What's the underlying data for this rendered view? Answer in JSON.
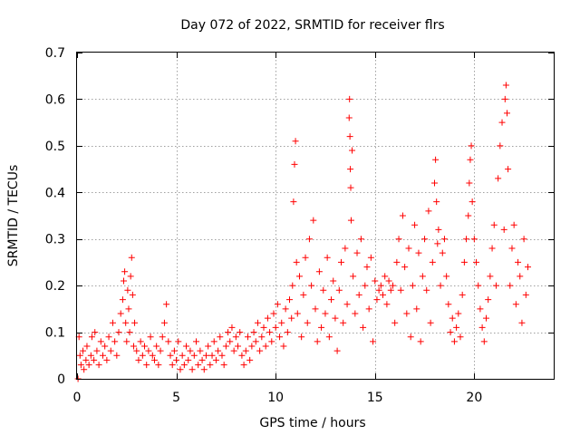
{
  "chart_data": {
    "type": "scatter",
    "title": "Day 072 of 2022, SRMTID for receiver flrs",
    "xlabel": "GPS time / hours",
    "ylabel": "SRMTID / TECUs",
    "xlim": [
      0,
      24
    ],
    "ylim": [
      0,
      0.7
    ],
    "xticks": [
      0,
      5,
      10,
      15,
      20
    ],
    "yticks": [
      0,
      0.1,
      0.2,
      0.3,
      0.4,
      0.5,
      0.6,
      0.7
    ],
    "xtick_labels": [
      "0",
      "5",
      "10",
      "15",
      "20"
    ],
    "ytick_labels": [
      "0",
      "0.1",
      "0.2",
      "0.3",
      "0.4",
      "0.5",
      "0.6",
      "0.7"
    ],
    "grid": true,
    "marker": "+",
    "marker_color": "#ff0000",
    "series": [
      {
        "name": "SRMTID",
        "points": [
          [
            0.05,
            0.0
          ],
          [
            0.1,
            0.09
          ],
          [
            0.15,
            0.05
          ],
          [
            0.2,
            0.03
          ],
          [
            0.3,
            0.06
          ],
          [
            0.35,
            0.02
          ],
          [
            0.45,
            0.04
          ],
          [
            0.5,
            0.07
          ],
          [
            0.6,
            0.03
          ],
          [
            0.7,
            0.05
          ],
          [
            0.75,
            0.09
          ],
          [
            0.85,
            0.04
          ],
          [
            0.9,
            0.1
          ],
          [
            1.0,
            0.06
          ],
          [
            1.1,
            0.03
          ],
          [
            1.2,
            0.08
          ],
          [
            1.3,
            0.05
          ],
          [
            1.4,
            0.07
          ],
          [
            1.5,
            0.04
          ],
          [
            1.6,
            0.09
          ],
          [
            1.7,
            0.06
          ],
          [
            1.8,
            0.12
          ],
          [
            1.9,
            0.08
          ],
          [
            2.0,
            0.05
          ],
          [
            2.1,
            0.1
          ],
          [
            2.2,
            0.14
          ],
          [
            2.3,
            0.17
          ],
          [
            2.35,
            0.21
          ],
          [
            2.4,
            0.23
          ],
          [
            2.45,
            0.12
          ],
          [
            2.5,
            0.08
          ],
          [
            2.55,
            0.19
          ],
          [
            2.6,
            0.15
          ],
          [
            2.65,
            0.1
          ],
          [
            2.7,
            0.22
          ],
          [
            2.75,
            0.26
          ],
          [
            2.8,
            0.18
          ],
          [
            2.85,
            0.07
          ],
          [
            2.9,
            0.12
          ],
          [
            3.0,
            0.06
          ],
          [
            3.1,
            0.04
          ],
          [
            3.2,
            0.08
          ],
          [
            3.3,
            0.05
          ],
          [
            3.4,
            0.07
          ],
          [
            3.5,
            0.03
          ],
          [
            3.6,
            0.06
          ],
          [
            3.7,
            0.09
          ],
          [
            3.8,
            0.05
          ],
          [
            3.9,
            0.04
          ],
          [
            4.0,
            0.07
          ],
          [
            4.1,
            0.03
          ],
          [
            4.2,
            0.06
          ],
          [
            4.3,
            0.09
          ],
          [
            4.4,
            0.12
          ],
          [
            4.5,
            0.16
          ],
          [
            4.6,
            0.08
          ],
          [
            4.7,
            0.05
          ],
          [
            4.8,
            0.03
          ],
          [
            4.9,
            0.06
          ],
          [
            5.0,
            0.04
          ],
          [
            5.1,
            0.08
          ],
          [
            5.2,
            0.02
          ],
          [
            5.3,
            0.05
          ],
          [
            5.4,
            0.03
          ],
          [
            5.5,
            0.07
          ],
          [
            5.6,
            0.04
          ],
          [
            5.7,
            0.06
          ],
          [
            5.8,
            0.02
          ],
          [
            5.9,
            0.05
          ],
          [
            6.0,
            0.08
          ],
          [
            6.1,
            0.03
          ],
          [
            6.2,
            0.06
          ],
          [
            6.3,
            0.04
          ],
          [
            6.4,
            0.02
          ],
          [
            6.5,
            0.05
          ],
          [
            6.6,
            0.07
          ],
          [
            6.7,
            0.03
          ],
          [
            6.8,
            0.05
          ],
          [
            6.9,
            0.08
          ],
          [
            7.0,
            0.04
          ],
          [
            7.1,
            0.06
          ],
          [
            7.2,
            0.09
          ],
          [
            7.3,
            0.05
          ],
          [
            7.4,
            0.03
          ],
          [
            7.5,
            0.07
          ],
          [
            7.6,
            0.1
          ],
          [
            7.7,
            0.08
          ],
          [
            7.8,
            0.11
          ],
          [
            7.9,
            0.06
          ],
          [
            8.0,
            0.09
          ],
          [
            8.1,
            0.07
          ],
          [
            8.2,
            0.1
          ],
          [
            8.3,
            0.05
          ],
          [
            8.4,
            0.03
          ],
          [
            8.5,
            0.06
          ],
          [
            8.6,
            0.09
          ],
          [
            8.7,
            0.04
          ],
          [
            8.8,
            0.07
          ],
          [
            8.9,
            0.1
          ],
          [
            9.0,
            0.08
          ],
          [
            9.1,
            0.12
          ],
          [
            9.2,
            0.06
          ],
          [
            9.3,
            0.09
          ],
          [
            9.4,
            0.11
          ],
          [
            9.5,
            0.07
          ],
          [
            9.6,
            0.13
          ],
          [
            9.7,
            0.1
          ],
          [
            9.8,
            0.08
          ],
          [
            9.9,
            0.14
          ],
          [
            10.0,
            0.11
          ],
          [
            10.1,
            0.16
          ],
          [
            10.2,
            0.09
          ],
          [
            10.3,
            0.12
          ],
          [
            10.4,
            0.07
          ],
          [
            10.5,
            0.15
          ],
          [
            10.6,
            0.1
          ],
          [
            10.7,
            0.17
          ],
          [
            10.8,
            0.13
          ],
          [
            10.85,
            0.2
          ],
          [
            10.9,
            0.38
          ],
          [
            10.95,
            0.46
          ],
          [
            11.0,
            0.51
          ],
          [
            11.05,
            0.25
          ],
          [
            11.1,
            0.14
          ],
          [
            11.2,
            0.22
          ],
          [
            11.3,
            0.09
          ],
          [
            11.4,
            0.18
          ],
          [
            11.5,
            0.26
          ],
          [
            11.6,
            0.12
          ],
          [
            11.7,
            0.3
          ],
          [
            11.8,
            0.2
          ],
          [
            11.9,
            0.34
          ],
          [
            12.0,
            0.15
          ],
          [
            12.1,
            0.08
          ],
          [
            12.2,
            0.23
          ],
          [
            12.3,
            0.11
          ],
          [
            12.4,
            0.19
          ],
          [
            12.5,
            0.14
          ],
          [
            12.6,
            0.26
          ],
          [
            12.7,
            0.09
          ],
          [
            12.8,
            0.17
          ],
          [
            12.9,
            0.21
          ],
          [
            13.0,
            0.13
          ],
          [
            13.1,
            0.06
          ],
          [
            13.2,
            0.19
          ],
          [
            13.3,
            0.25
          ],
          [
            13.4,
            0.12
          ],
          [
            13.5,
            0.28
          ],
          [
            13.6,
            0.16
          ],
          [
            13.7,
            0.56
          ],
          [
            13.72,
            0.6
          ],
          [
            13.74,
            0.52
          ],
          [
            13.76,
            0.45
          ],
          [
            13.78,
            0.41
          ],
          [
            13.8,
            0.34
          ],
          [
            13.85,
            0.49
          ],
          [
            13.9,
            0.22
          ],
          [
            14.0,
            0.14
          ],
          [
            14.1,
            0.27
          ],
          [
            14.2,
            0.18
          ],
          [
            14.3,
            0.3
          ],
          [
            14.4,
            0.11
          ],
          [
            14.5,
            0.2
          ],
          [
            14.6,
            0.24
          ],
          [
            14.7,
            0.15
          ],
          [
            14.8,
            0.26
          ],
          [
            14.9,
            0.08
          ],
          [
            15.0,
            0.21
          ],
          [
            15.1,
            0.17
          ],
          [
            15.2,
            0.19
          ],
          [
            15.3,
            0.2
          ],
          [
            15.4,
            0.18
          ],
          [
            15.5,
            0.22
          ],
          [
            15.6,
            0.16
          ],
          [
            15.7,
            0.21
          ],
          [
            15.8,
            0.19
          ],
          [
            15.9,
            0.2
          ],
          [
            16.0,
            0.12
          ],
          [
            16.1,
            0.25
          ],
          [
            16.2,
            0.3
          ],
          [
            16.3,
            0.19
          ],
          [
            16.4,
            0.35
          ],
          [
            16.5,
            0.24
          ],
          [
            16.6,
            0.14
          ],
          [
            16.7,
            0.28
          ],
          [
            16.8,
            0.09
          ],
          [
            16.9,
            0.2
          ],
          [
            17.0,
            0.33
          ],
          [
            17.1,
            0.15
          ],
          [
            17.2,
            0.27
          ],
          [
            17.3,
            0.08
          ],
          [
            17.4,
            0.22
          ],
          [
            17.5,
            0.3
          ],
          [
            17.6,
            0.19
          ],
          [
            17.7,
            0.36
          ],
          [
            17.8,
            0.12
          ],
          [
            17.9,
            0.25
          ],
          [
            18.0,
            0.42
          ],
          [
            18.05,
            0.47
          ],
          [
            18.1,
            0.38
          ],
          [
            18.15,
            0.29
          ],
          [
            18.2,
            0.32
          ],
          [
            18.3,
            0.2
          ],
          [
            18.4,
            0.27
          ],
          [
            18.5,
            0.3
          ],
          [
            18.6,
            0.22
          ],
          [
            18.7,
            0.16
          ],
          [
            18.8,
            0.1
          ],
          [
            18.9,
            0.13
          ],
          [
            19.0,
            0.08
          ],
          [
            19.1,
            0.11
          ],
          [
            19.2,
            0.14
          ],
          [
            19.3,
            0.09
          ],
          [
            19.4,
            0.18
          ],
          [
            19.5,
            0.25
          ],
          [
            19.6,
            0.3
          ],
          [
            19.7,
            0.35
          ],
          [
            19.75,
            0.42
          ],
          [
            19.8,
            0.47
          ],
          [
            19.85,
            0.5
          ],
          [
            19.9,
            0.38
          ],
          [
            20.0,
            0.3
          ],
          [
            20.1,
            0.25
          ],
          [
            20.2,
            0.2
          ],
          [
            20.3,
            0.15
          ],
          [
            20.4,
            0.11
          ],
          [
            20.5,
            0.08
          ],
          [
            20.6,
            0.13
          ],
          [
            20.7,
            0.17
          ],
          [
            20.8,
            0.22
          ],
          [
            20.9,
            0.28
          ],
          [
            21.0,
            0.33
          ],
          [
            21.1,
            0.2
          ],
          [
            21.2,
            0.43
          ],
          [
            21.3,
            0.5
          ],
          [
            21.4,
            0.55
          ],
          [
            21.5,
            0.32
          ],
          [
            21.55,
            0.6
          ],
          [
            21.6,
            0.63
          ],
          [
            21.65,
            0.57
          ],
          [
            21.7,
            0.45
          ],
          [
            21.8,
            0.2
          ],
          [
            21.9,
            0.28
          ],
          [
            22.0,
            0.33
          ],
          [
            22.1,
            0.16
          ],
          [
            22.2,
            0.25
          ],
          [
            22.3,
            0.22
          ],
          [
            22.4,
            0.12
          ],
          [
            22.5,
            0.3
          ],
          [
            22.6,
            0.18
          ],
          [
            22.7,
            0.24
          ]
        ]
      }
    ]
  }
}
